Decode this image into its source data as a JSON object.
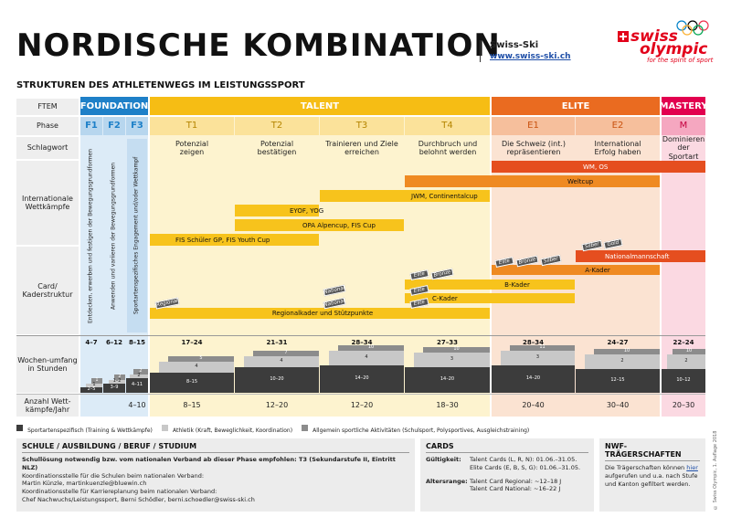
{
  "header": {
    "title": "NORDISCHE KOMBINATION",
    "subtitle": "STRUKTUREN DES ATHLETENWEGS IM LEISTUNGSSPORT",
    "org": "Swiss-Ski",
    "org_link": "www.swiss-ski.ch",
    "logo_swiss": "swiss",
    "logo_olympic": "olympic",
    "logo_tagline": "for the spirit of sport"
  },
  "row_labels": {
    "ftem": "FTEM",
    "phase": "Phase",
    "schlagwort": "Schlagwort",
    "wettkaempfe": "Internationale Wettkämpfe",
    "card": "Card/ Kaderstruktur",
    "wochen": "Wochen-umfang in Stunden",
    "anzahl": "Anzahl Wett-kämpfe/Jahr"
  },
  "ftem": {
    "foundation": "FOUNDATION",
    "talent": "TALENT",
    "elite": "ELITE",
    "mastery": "MASTERY"
  },
  "phases": [
    "F1",
    "F2",
    "F3",
    "T1",
    "T2",
    "T3",
    "T4",
    "E1",
    "E2",
    "M"
  ],
  "schlagworte": [
    "Potenzial zeigen",
    "Potenzial bestätigen",
    "Trainieren und Ziele erreichen",
    "Durchbruch und belohnt werden",
    "Die Schweiz (int.) repräsentieren",
    "International Erfolg haben",
    "Dominieren der Sportart"
  ],
  "foundation_vertical": [
    "Entdecken, erwerben und festigen der Bewegungsgrundformen",
    "Anwenden und variieren der Bewegungsgrundformen",
    "Sportartenspezifisches Engagement und/oder Wettkampf"
  ],
  "competitions": [
    "WM, OS",
    "Weltcup",
    "JWM, Continentalcup",
    "EYOF, YOG",
    "OPA Alpencup, FIS Cup",
    "FIS Schüler GP, FIS Youth Cup"
  ],
  "kader": {
    "national_team": "Nationalmannschaft",
    "a_kader": "A-Kader",
    "b_kader": "B-Kader",
    "c_kader": "C-Kader",
    "regional": "Regionalkader und Stützpunkte",
    "tags": {
      "silber": "Silber",
      "gold": "Gold",
      "elite": "Elite",
      "bronze": "Bronze",
      "national": "National",
      "regional": "Regional"
    }
  },
  "wochen_totals": [
    "4–7",
    "6–12",
    "8–15",
    "17–24",
    "21–31",
    "28–34",
    "27–33",
    "28–34",
    "24–27",
    "22–24"
  ],
  "wochen_breakdown": {
    "F1": [
      "2–5",
      "1",
      "1"
    ],
    "F2": [
      "3–9",
      "1–2",
      "2"
    ],
    "F3": [
      "4–11",
      "2",
      "2"
    ],
    "T1": [
      "8–15",
      "4",
      "5"
    ],
    "T2": [
      "10–20",
      "4",
      "7"
    ],
    "T3": [
      "14–20",
      "4",
      "10"
    ],
    "T4": [
      "14–20",
      "3",
      "10"
    ],
    "E1": [
      "14–20",
      "3",
      "11"
    ],
    "E2": [
      "12–15",
      "2",
      "10"
    ],
    "M": [
      "10–12",
      "2",
      "10"
    ]
  },
  "anzahl": [
    "4–10",
    "8–15",
    "12–20",
    "12–20",
    "18–30",
    "20–40",
    "30–40",
    "20–30"
  ],
  "legend": [
    {
      "label": "Sportartenspezifisch (Training & Wettkämpfe)",
      "color": "#3c3c3c"
    },
    {
      "label": "Athletik (Kraft, Beweglichkeit, Koordination)",
      "color": "#c8c8c8"
    },
    {
      "label": "Allgemein sportliche Aktivitäten (Schulsport, Polysportives, Ausgleichstraining)",
      "color": "#8c8c8c"
    }
  ],
  "colors": {
    "foundation": "#1e80c8",
    "talent": "#f6bd14",
    "elite": "#ea6b20",
    "mastery": "#e2004f",
    "bar_yellow": "#f7c31c",
    "bar_orange": "#ef8a22",
    "bar_red": "#e54e1f"
  },
  "school": {
    "heading": "SCHULE / AUSBILDUNG / BERUF / STUDIUM",
    "line1": "Schullösung notwendig bzw. vom nationalen Verband ab dieser Phase empfohlen: T3 (Sekundarstufe II, Eintritt NLZ)",
    "line2": "Koordinationsstelle für die Schulen beim nationalen Verband:",
    "line3": "Martin Künzle, martinkuenzle@bluewin.ch",
    "line4": "Koordinationsstelle für Karriereplanung beim nationalen Verband:",
    "line5": "Chef Nachwuchs/Leistungssport, Berni Schödler, berni.schoedler@swiss-ski.ch"
  },
  "cards": {
    "heading": "CARDS",
    "gueltigkeit_label": "Gültigkeit:",
    "gueltigkeit_1": "Talent Cards (L, R, N): 01.06.–31.05.",
    "gueltigkeit_2": "Elite Cards (E, B, S, G): 01.06.–31.05.",
    "alter_label": "Altersrange:",
    "alter_1": "Talent Card Regional: ~12–18 J",
    "alter_2": "Talent Card National: ~16–22 J"
  },
  "nwf": {
    "heading": "NWF-TRÄGERSCHAFTEN",
    "text_a": "Die Trägerschaften können",
    "link": "hier",
    "text_b": "aufgerufen und u.a. nach Stufe und Kanton gefiltert werden."
  },
  "footer_side": "© Swiss Olympic, 1. Auflage 2018"
}
